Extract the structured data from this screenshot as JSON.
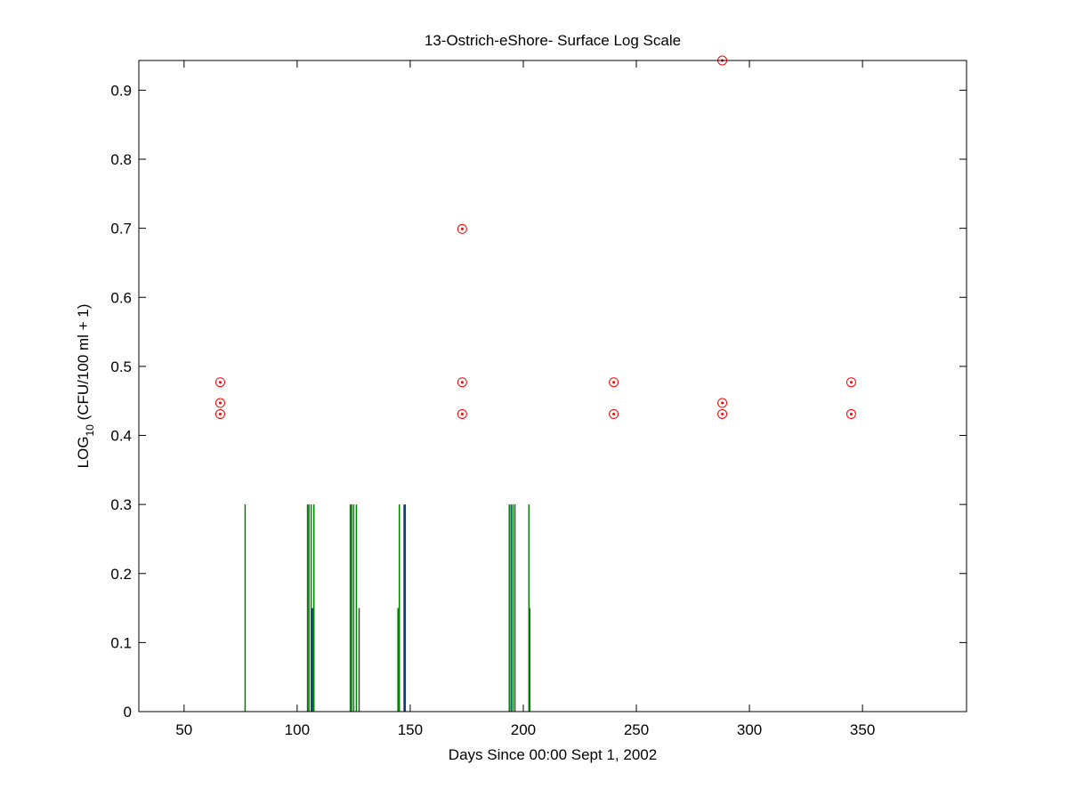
{
  "chart_data": {
    "type": "scatter",
    "title": "13-Ostrich-eShore- Surface Log Scale",
    "xlabel": "Days Since 00:00 Sept 1, 2002",
    "ylabel_main": "LOG",
    "ylabel_sub": "10",
    "ylabel_rest": " (CFU/100 ml + 1)",
    "xlim": [
      30,
      396
    ],
    "ylim": [
      0,
      0.943
    ],
    "xticks": [
      50,
      100,
      150,
      200,
      250,
      300,
      350
    ],
    "yticks": [
      0,
      0.1,
      0.2,
      0.3,
      0.4,
      0.5,
      0.6,
      0.7,
      0.8,
      0.9
    ],
    "grid": false,
    "points": {
      "name": "samples",
      "color": "#ff0000",
      "x": [
        66,
        66,
        66,
        173,
        173,
        173,
        240,
        240,
        288,
        288,
        288,
        345,
        345
      ],
      "y": [
        0.477,
        0.447,
        0.431,
        0.699,
        0.477,
        0.431,
        0.477,
        0.431,
        0.943,
        0.447,
        0.431,
        0.477,
        0.431
      ]
    },
    "bars": [
      {
        "x": 77,
        "y": 0.3,
        "color": "#007f00"
      },
      {
        "x": 104.6,
        "y": 0.3,
        "color": "#007f00"
      },
      {
        "x": 105.2,
        "y": 0.3,
        "color": "#007f00"
      },
      {
        "x": 106.2,
        "y": 0.3,
        "color": "#007f00"
      },
      {
        "x": 106.6,
        "y": 0.15,
        "color": "#00407f"
      },
      {
        "x": 107.2,
        "y": 0.15,
        "color": "#404040"
      },
      {
        "x": 107.4,
        "y": 0.3,
        "color": "#007f00"
      },
      {
        "x": 123.5,
        "y": 0.3,
        "color": "#007f00"
      },
      {
        "x": 124.1,
        "y": 0.3,
        "color": "#007f00"
      },
      {
        "x": 125.0,
        "y": 0.3,
        "color": "#007f00"
      },
      {
        "x": 126.2,
        "y": 0.3,
        "color": "#007f00"
      },
      {
        "x": 127.4,
        "y": 0.15,
        "color": "#404040"
      },
      {
        "x": 144.6,
        "y": 0.15,
        "color": "#007f00"
      },
      {
        "x": 145.2,
        "y": 0.3,
        "color": "#007f00"
      },
      {
        "x": 147.3,
        "y": 0.3,
        "color": "#00407f"
      },
      {
        "x": 147.8,
        "y": 0.3,
        "color": "#00407f"
      },
      {
        "x": 193.8,
        "y": 0.3,
        "color": "#007f00"
      },
      {
        "x": 194.6,
        "y": 0.3,
        "color": "#00407f"
      },
      {
        "x": 195.4,
        "y": 0.3,
        "color": "#007f00"
      },
      {
        "x": 196.3,
        "y": 0.3,
        "color": "#404040"
      },
      {
        "x": 202.5,
        "y": 0.3,
        "color": "#007f00"
      },
      {
        "x": 202.9,
        "y": 0.15,
        "color": "#007f00"
      }
    ]
  }
}
